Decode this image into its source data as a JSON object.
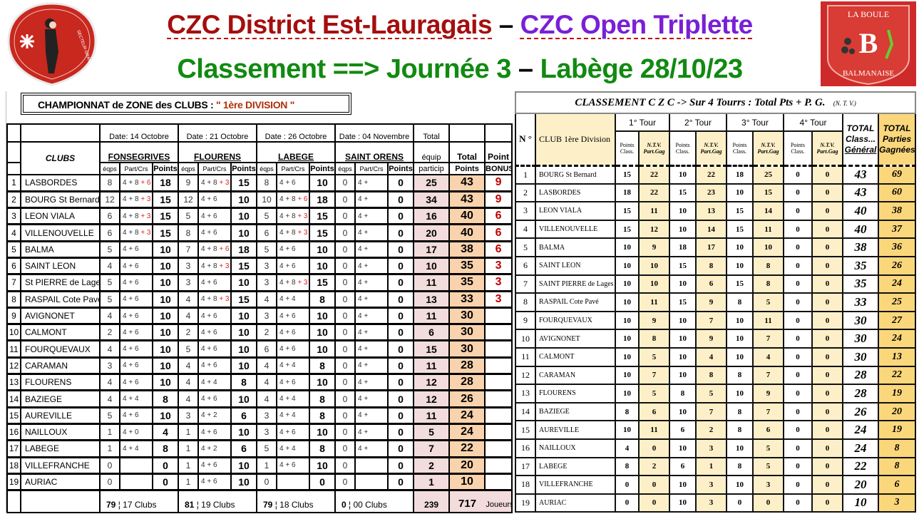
{
  "header": {
    "title_part1": "CZC District Est-Lauragais",
    "title_sep": " – ",
    "title_part2": "CZC Open Triplette",
    "subtitle_part1": "Classement ==> Journée 3",
    "subtitle_sep": " – ",
    "subtitle_part2": "Labège 28/10/23",
    "colors": {
      "title1": "#a50e0e",
      "title2": "#7a1fd6",
      "subtitle": "#118a11"
    },
    "left_logo_text": "SECTEUR GRAND LAURAGAIS",
    "right_logo_text": [
      "LA BOULE",
      "BALMANAISE"
    ]
  },
  "left_table": {
    "title": "CHAMPIONNAT  de  ZONE  des  CLUBS :",
    "division": "\" 1ère  DIVISION \"",
    "dates": [
      "Date: 14  Octobre",
      "Date :  21 Octobre",
      "Date :  26  Octobre",
      "Date :  04  Novembre"
    ],
    "venues": [
      "FONSEGRIVES",
      "FLOURENS",
      "LABEGE",
      "SAINT ORENS"
    ],
    "clubs_header": "CLUBS",
    "sub_headers": [
      "éqps",
      "Part/Crs",
      "Points"
    ],
    "particip_header": [
      "Total",
      "équip",
      "particip"
    ],
    "total_header": [
      "Total",
      "Points"
    ],
    "bonus_header": [
      "Point",
      "BONUS"
    ],
    "rows": [
      {
        "rank": "1",
        "club": "LASBORDES",
        "r": [
          [
            "8",
            "4 +  8",
            "+ 6",
            "18"
          ],
          [
            "9",
            "4 +  8",
            "+ 3",
            "15"
          ],
          [
            "8",
            "4 +  6",
            "",
            "10"
          ],
          [
            "0",
            "4 +",
            "",
            "0"
          ]
        ],
        "particip": "25",
        "total": "43",
        "bonus": "9"
      },
      {
        "rank": "2",
        "club": "BOURG St Bernard",
        "r": [
          [
            "12",
            "4 +  8",
            "+ 3",
            "15"
          ],
          [
            "12",
            "4 +  6",
            "",
            "10"
          ],
          [
            "10",
            "4 +  8",
            "+ 6",
            "18"
          ],
          [
            "0",
            "4 +",
            "",
            "0"
          ]
        ],
        "particip": "34",
        "total": "43",
        "bonus": "9"
      },
      {
        "rank": "3",
        "club": "LEON VIALA",
        "r": [
          [
            "6",
            "4 +  8",
            "+ 3",
            "15"
          ],
          [
            "5",
            "4 +  6",
            "",
            "10"
          ],
          [
            "5",
            "4 +  8",
            "+ 3",
            "15"
          ],
          [
            "0",
            "4 +",
            "",
            "0"
          ]
        ],
        "particip": "16",
        "total": "40",
        "bonus": "6"
      },
      {
        "rank": "4",
        "club": "VILLENOUVELLE",
        "r": [
          [
            "6",
            "4 +  8",
            "+ 3",
            "15"
          ],
          [
            "8",
            "4 +  6",
            "",
            "10"
          ],
          [
            "6",
            "4 +  8",
            "+ 3",
            "15"
          ],
          [
            "0",
            "4 +",
            "",
            "0"
          ]
        ],
        "particip": "20",
        "total": "40",
        "bonus": "6"
      },
      {
        "rank": "5",
        "club": "BALMA",
        "r": [
          [
            "5",
            "4 +  6",
            "",
            "10"
          ],
          [
            "7",
            "4 +  8",
            "+ 6",
            "18"
          ],
          [
            "5",
            "4 +  6",
            "",
            "10"
          ],
          [
            "0",
            "4 +",
            "",
            "0"
          ]
        ],
        "particip": "17",
        "total": "38",
        "bonus": "6"
      },
      {
        "rank": "6",
        "club": "SAINT LEON",
        "r": [
          [
            "4",
            "4 +  6",
            "",
            "10"
          ],
          [
            "3",
            "4 +  8",
            "+ 3",
            "15"
          ],
          [
            "3",
            "4 +  6",
            "",
            "10"
          ],
          [
            "0",
            "4 +",
            "",
            "0"
          ]
        ],
        "particip": "10",
        "total": "35",
        "bonus": "3"
      },
      {
        "rank": "7",
        "club": "St PIERRE de Lages",
        "r": [
          [
            "5",
            "4 +  6",
            "",
            "10"
          ],
          [
            "3",
            "4 +  6",
            "",
            "10"
          ],
          [
            "3",
            "4 +  8",
            "+ 3",
            "15"
          ],
          [
            "0",
            "4 +",
            "",
            "0"
          ]
        ],
        "particip": "11",
        "total": "35",
        "bonus": "3"
      },
      {
        "rank": "8",
        "club": "RASPAIL  Cote Pavé",
        "r": [
          [
            "5",
            "4 +  6",
            "",
            "10"
          ],
          [
            "4",
            "4 +  8",
            "+ 3",
            "15"
          ],
          [
            "4",
            "4 +  4",
            "",
            "8"
          ],
          [
            "0",
            "4 +",
            "",
            "0"
          ]
        ],
        "particip": "13",
        "total": "33",
        "bonus": "3"
      },
      {
        "rank": "9",
        "club": "AVIGNONET",
        "r": [
          [
            "4",
            "4 + 6",
            "",
            "10"
          ],
          [
            "4",
            "4 +  6",
            "",
            "10"
          ],
          [
            "3",
            "4 +  6",
            "",
            "10"
          ],
          [
            "0",
            "4 +",
            "",
            "0"
          ]
        ],
        "particip": "11",
        "total": "30",
        "bonus": ""
      },
      {
        "rank": "10",
        "club": "CALMONT",
        "r": [
          [
            "2",
            "4 + 6",
            "",
            "10"
          ],
          [
            "2",
            "4 +  6",
            "",
            "10"
          ],
          [
            "2",
            "4 +  6",
            "",
            "10"
          ],
          [
            "0",
            "4 +",
            "",
            "0"
          ]
        ],
        "particip": "6",
        "total": "30",
        "bonus": ""
      },
      {
        "rank": "11",
        "club": "FOURQUEVAUX",
        "r": [
          [
            "4",
            "4 + 6",
            "",
            "10"
          ],
          [
            "5",
            "4 +  6",
            "",
            "10"
          ],
          [
            "6",
            "4 +  6",
            "",
            "10"
          ],
          [
            "0",
            "4 +",
            "",
            "0"
          ]
        ],
        "particip": "15",
        "total": "30",
        "bonus": ""
      },
      {
        "rank": "12",
        "club": "CARAMAN",
        "r": [
          [
            "3",
            "4 + 6",
            "",
            "10"
          ],
          [
            "4",
            "4 +  6",
            "",
            "10"
          ],
          [
            "4",
            "4 +  4",
            "",
            "8"
          ],
          [
            "0",
            "4 +",
            "",
            "0"
          ]
        ],
        "particip": "11",
        "total": "28",
        "bonus": ""
      },
      {
        "rank": "13",
        "club": "FLOURENS",
        "r": [
          [
            "4",
            "4 +  6",
            "",
            "10"
          ],
          [
            "4",
            "4 +  4",
            "",
            "8"
          ],
          [
            "4",
            "4 +  6",
            "",
            "10"
          ],
          [
            "0",
            "4 +",
            "",
            "0"
          ]
        ],
        "particip": "12",
        "total": "28",
        "bonus": ""
      },
      {
        "rank": "14",
        "club": "BAZIEGE",
        "r": [
          [
            "4",
            "4 + 4",
            "",
            "8"
          ],
          [
            "4",
            "4 +  6",
            "",
            "10"
          ],
          [
            "4",
            "4 +  4",
            "",
            "8"
          ],
          [
            "0",
            "4 +",
            "",
            "0"
          ]
        ],
        "particip": "12",
        "total": "26",
        "bonus": ""
      },
      {
        "rank": "15",
        "club": "AUREVILLE",
        "r": [
          [
            "5",
            "4 + 6",
            "",
            "10"
          ],
          [
            "3",
            "4 +  2",
            "",
            "6"
          ],
          [
            "3",
            "4 +  4",
            "",
            "8"
          ],
          [
            "0",
            "4 +",
            "",
            "0"
          ]
        ],
        "particip": "11",
        "total": "24",
        "bonus": ""
      },
      {
        "rank": "16",
        "club": "NAILLOUX",
        "r": [
          [
            "1",
            "4 +  0",
            "",
            "4"
          ],
          [
            "1",
            "4 +  6",
            "",
            "10"
          ],
          [
            "3",
            "4 +  6",
            "",
            "10"
          ],
          [
            "0",
            "4 +",
            "",
            "0"
          ]
        ],
        "particip": "5",
        "total": "24",
        "bonus": ""
      },
      {
        "rank": "17",
        "club": "LABEGE",
        "r": [
          [
            "1",
            "4 +  4",
            "",
            "8"
          ],
          [
            "1",
            "4 +  2",
            "",
            "6"
          ],
          [
            "5",
            "4 +  4",
            "",
            "8"
          ],
          [
            "0",
            "4 +",
            "",
            "0"
          ]
        ],
        "particip": "7",
        "total": "22",
        "bonus": ""
      },
      {
        "rank": "18",
        "club": "VILLEFRANCHE",
        "r": [
          [
            "0",
            "",
            "",
            "0"
          ],
          [
            "1",
            "4 +  6",
            "",
            "10"
          ],
          [
            "1",
            "4 +  6",
            "",
            "10"
          ],
          [
            "0",
            "",
            "",
            "0"
          ]
        ],
        "particip": "2",
        "total": "20",
        "bonus": ""
      },
      {
        "rank": "19",
        "club": "AURIAC",
        "r": [
          [
            "0",
            "",
            "",
            "0"
          ],
          [
            "1",
            "4 +  6",
            "",
            "10"
          ],
          [
            "0",
            "",
            "",
            "0"
          ],
          [
            "0",
            "",
            "",
            "0"
          ]
        ],
        "particip": "1",
        "total": "10",
        "bonus": ""
      }
    ],
    "footer": {
      "teams": [
        [
          "79",
          "17  Clubs"
        ],
        [
          "81",
          "19  Clubs"
        ],
        [
          "79",
          "18 Clubs"
        ],
        [
          "0",
          "00  Clubs"
        ]
      ],
      "particip_total": "239",
      "players_total": "717",
      "players_label": "Joueurs"
    }
  },
  "right_table": {
    "title": "CLASSEMENT   C Z C    -> Sur  4  Tourrs : Total  Pts  +  P. G.",
    "title_note": "(N. T. V.)",
    "n_header": "N °",
    "club_header": "CLUB  1ère  Division",
    "tours": [
      "1° Tour",
      "2° Tour",
      "3° Tour",
      "4° Tour"
    ],
    "points_class": [
      "Points",
      "Class."
    ],
    "ntv": [
      "N.T.V.",
      "Part.Gag"
    ],
    "total_class": [
      "TOTAL",
      "Class...",
      "Général"
    ],
    "total_parties": [
      "TOTAL",
      "Parties",
      "Gagnées"
    ],
    "rows": [
      [
        "1",
        "BOURG St Bernard",
        "15",
        "22",
        "10",
        "22",
        "18",
        "25",
        "0",
        "0",
        "43",
        "69"
      ],
      [
        "2",
        "LASBORDES",
        "18",
        "22",
        "15",
        "23",
        "10",
        "15",
        "0",
        "0",
        "43",
        "60"
      ],
      [
        "3",
        "LEON VIALA",
        "15",
        "11",
        "10",
        "13",
        "15",
        "14",
        "0",
        "0",
        "40",
        "38"
      ],
      [
        "4",
        "VILLENOUVELLE",
        "15",
        "12",
        "10",
        "14",
        "15",
        "11",
        "0",
        "0",
        "40",
        "37"
      ],
      [
        "5",
        "BALMA",
        "10",
        "9",
        "18",
        "17",
        "10",
        "10",
        "0",
        "0",
        "38",
        "36"
      ],
      [
        "6",
        "SAINT  LEON",
        "10",
        "10",
        "15",
        "8",
        "10",
        "8",
        "0",
        "0",
        "35",
        "26"
      ],
      [
        "7",
        "SAINT PIERRE de Lages",
        "10",
        "10",
        "10",
        "6",
        "15",
        "8",
        "0",
        "0",
        "35",
        "24"
      ],
      [
        "8",
        "RASPAIL  Cote Pavé",
        "10",
        "11",
        "15",
        "9",
        "8",
        "5",
        "0",
        "0",
        "33",
        "25"
      ],
      [
        "9",
        "FOURQUEVAUX",
        "10",
        "9",
        "10",
        "7",
        "10",
        "11",
        "0",
        "0",
        "30",
        "27"
      ],
      [
        "10",
        "AVIGNONET",
        "10",
        "8",
        "10",
        "9",
        "10",
        "7",
        "0",
        "0",
        "30",
        "24"
      ],
      [
        "11",
        "CALMONT",
        "10",
        "5",
        "10",
        "4",
        "10",
        "4",
        "0",
        "0",
        "30",
        "13"
      ],
      [
        "12",
        "CARAMAN",
        "10",
        "7",
        "10",
        "8",
        "8",
        "7",
        "0",
        "0",
        "28",
        "22"
      ],
      [
        "13",
        "FLOURENS",
        "10",
        "5",
        "8",
        "5",
        "10",
        "9",
        "0",
        "0",
        "28",
        "19"
      ],
      [
        "14",
        "BAZIEGE",
        "8",
        "6",
        "10",
        "7",
        "8",
        "7",
        "0",
        "0",
        "26",
        "20"
      ],
      [
        "15",
        "AUREVILLE",
        "10",
        "11",
        "6",
        "2",
        "8",
        "6",
        "0",
        "0",
        "24",
        "19"
      ],
      [
        "16",
        "NAILLOUX",
        "4",
        "0",
        "10",
        "3",
        "10",
        "5",
        "0",
        "0",
        "24",
        "8"
      ],
      [
        "17",
        "LABEGE",
        "8",
        "2",
        "6",
        "1",
        "8",
        "5",
        "0",
        "0",
        "22",
        "8"
      ],
      [
        "18",
        "VILLEFRANCHE",
        "0",
        "0",
        "10",
        "3",
        "10",
        "3",
        "0",
        "0",
        "20",
        "6"
      ],
      [
        "19",
        "AURIAC",
        "0",
        "0",
        "10",
        "3",
        "0",
        "0",
        "0",
        "0",
        "10",
        "3"
      ]
    ]
  }
}
